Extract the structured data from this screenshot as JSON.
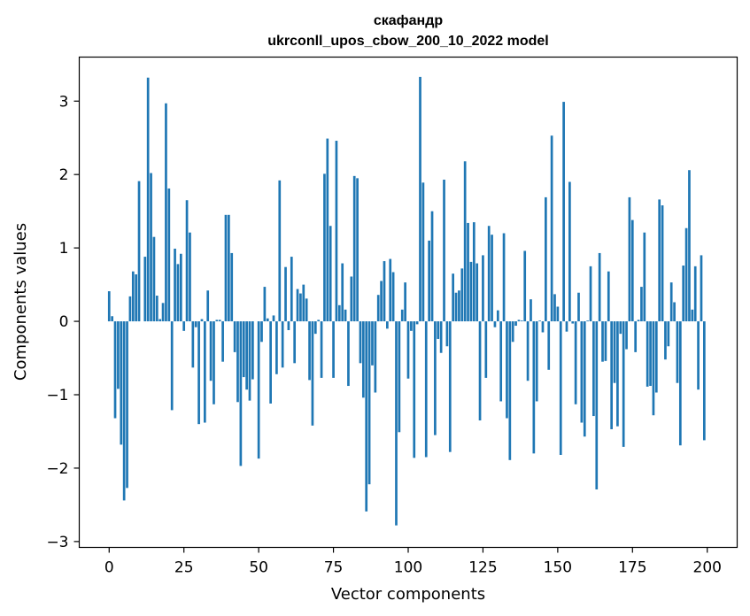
{
  "chart_data": {
    "type": "bar",
    "title": "скафандр",
    "subtitle": "ukrconll_upos_cbow_200_10_2022 model",
    "xlabel": "Vector components",
    "ylabel": "Components values",
    "xlim": [
      -10,
      210
    ],
    "ylim": [
      -3.08,
      3.6
    ],
    "xticks": [
      0,
      25,
      50,
      75,
      100,
      125,
      150,
      175,
      200
    ],
    "yticks": [
      -3,
      -2,
      -1,
      0,
      1,
      2,
      3
    ],
    "ytick_labels": [
      "−3",
      "−2",
      "−1",
      "0",
      "1",
      "2",
      "3"
    ],
    "bar_color": "#1f77b4",
    "grid": false,
    "values": [
      0.41,
      0.07,
      -1.32,
      -0.92,
      -1.68,
      -2.44,
      -2.27,
      0.34,
      0.68,
      0.64,
      1.91,
      0.0,
      0.88,
      3.32,
      2.02,
      1.15,
      0.35,
      0.03,
      0.25,
      2.97,
      1.81,
      -1.21,
      0.99,
      0.78,
      0.92,
      -0.13,
      1.65,
      1.21,
      -0.63,
      -0.08,
      -1.4,
      0.03,
      -1.38,
      0.42,
      -0.81,
      -1.13,
      0.02,
      0.02,
      -0.55,
      1.45,
      1.45,
      0.93,
      -0.42,
      -1.1,
      -1.97,
      -0.76,
      -0.93,
      -1.08,
      -0.79,
      0.0,
      -1.87,
      -0.28,
      0.47,
      0.04,
      -1.12,
      0.08,
      -0.72,
      1.92,
      -0.63,
      0.74,
      -0.12,
      0.88,
      -0.57,
      0.44,
      0.38,
      0.5,
      0.31,
      -0.8,
      -1.42,
      -0.17,
      0.02,
      -0.77,
      2.01,
      2.49,
      1.3,
      -0.77,
      2.46,
      0.22,
      0.79,
      0.16,
      -0.88,
      0.61,
      1.98,
      1.95,
      -0.57,
      -1.04,
      -2.59,
      -2.22,
      -0.6,
      -0.97,
      0.36,
      0.55,
      0.82,
      -0.1,
      0.85,
      0.67,
      -2.78,
      -1.51,
      0.16,
      0.53,
      -0.78,
      -0.13,
      -1.86,
      -0.04,
      3.33,
      1.89,
      -1.85,
      1.1,
      1.5,
      -1.55,
      -0.24,
      -0.43,
      1.93,
      -0.34,
      -1.78,
      0.65,
      0.39,
      0.42,
      0.72,
      2.18,
      1.34,
      0.81,
      1.35,
      0.79,
      -1.35,
      0.9,
      -0.77,
      1.3,
      1.18,
      -0.08,
      0.15,
      -1.09,
      1.2,
      -1.32,
      -1.89,
      -0.28,
      -0.06,
      0.02,
      0.01,
      0.96,
      -0.81,
      0.3,
      -1.8,
      -1.09,
      0.01,
      -0.15,
      1.69,
      -0.66,
      2.53,
      0.37,
      0.2,
      -1.82,
      2.99,
      -0.14,
      1.9,
      -0.03,
      -1.13,
      0.39,
      -1.38,
      -1.57,
      0.01,
      0.75,
      -1.29,
      -2.29,
      0.93,
      -0.55,
      -0.54,
      0.68,
      -1.47,
      -0.84,
      -1.43,
      -0.17,
      -1.71,
      -0.38,
      1.69,
      1.38,
      -0.42,
      0.02,
      0.47,
      1.21,
      -0.89,
      -0.88,
      -1.28,
      -0.97,
      1.66,
      1.58,
      -0.52,
      -0.34,
      0.53,
      0.26,
      -0.84,
      -1.69,
      0.76,
      1.27,
      2.06,
      0.16,
      0.75,
      -0.93,
      0.9,
      -1.62
    ]
  }
}
